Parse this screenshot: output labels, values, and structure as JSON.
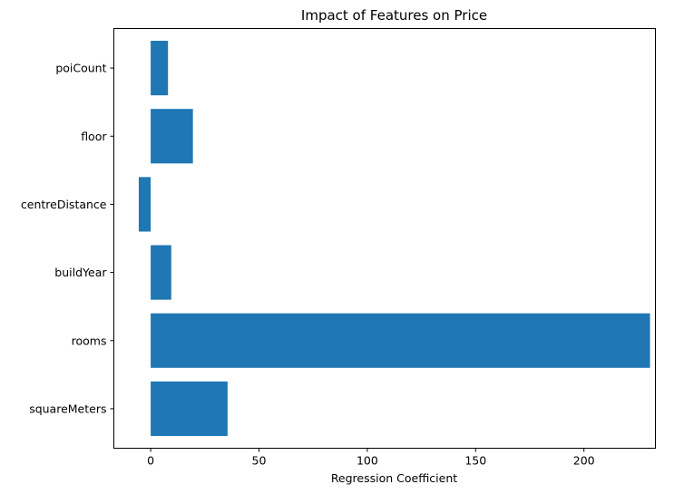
{
  "chart_data": {
    "type": "bar",
    "orientation": "horizontal",
    "title": "Impact of Features on Price",
    "xlabel": "Regression Coefficient",
    "ylabel": "",
    "categories": [
      "squareMeters",
      "rooms",
      "buildYear",
      "centreDistance",
      "floor",
      "poiCount"
    ],
    "values": [
      35.5,
      230.5,
      9.5,
      -5.5,
      19.5,
      8
    ],
    "xlim": [
      -17,
      233
    ],
    "xticks": [
      0,
      50,
      100,
      150,
      200
    ],
    "bar_color": "#1f77b4",
    "grid": false,
    "legend": "none"
  }
}
